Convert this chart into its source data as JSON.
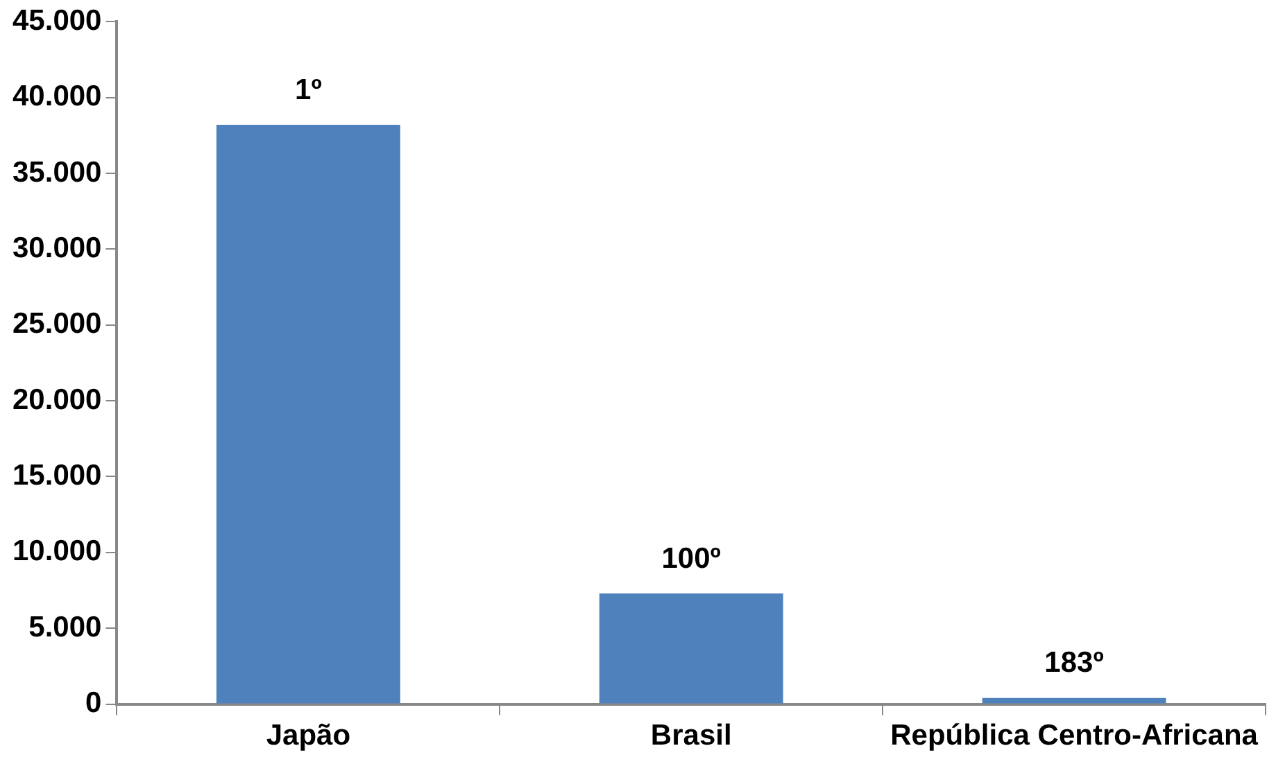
{
  "chart_data": {
    "type": "bar",
    "categories": [
      "Japão",
      "Brasil",
      "República Centro-Africana"
    ],
    "values": [
      38200,
      7300,
      400
    ],
    "color": "#4f81bd",
    "ylim": [
      0,
      45000
    ],
    "yticks": [
      {
        "value": 0,
        "label": "0"
      },
      {
        "value": 5000,
        "label": "5.000"
      },
      {
        "value": 10000,
        "label": "10.000"
      },
      {
        "value": 15000,
        "label": "15.000"
      },
      {
        "value": 20000,
        "label": "20.000"
      },
      {
        "value": 25000,
        "label": "25.000"
      },
      {
        "value": 30000,
        "label": "30.000"
      },
      {
        "value": 35000,
        "label": "35.000"
      },
      {
        "value": 40000,
        "label": "40.000"
      },
      {
        "value": 45000,
        "label": "45.000"
      }
    ],
    "grid": false,
    "legend": false,
    "annotations": [
      {
        "text": "1º",
        "x": "Japão",
        "y": 38200
      },
      {
        "text": "100º",
        "x": "Brasil",
        "y": 7300
      },
      {
        "text": "183º",
        "x": "República Centro-Africana",
        "y": 400
      }
    ]
  }
}
